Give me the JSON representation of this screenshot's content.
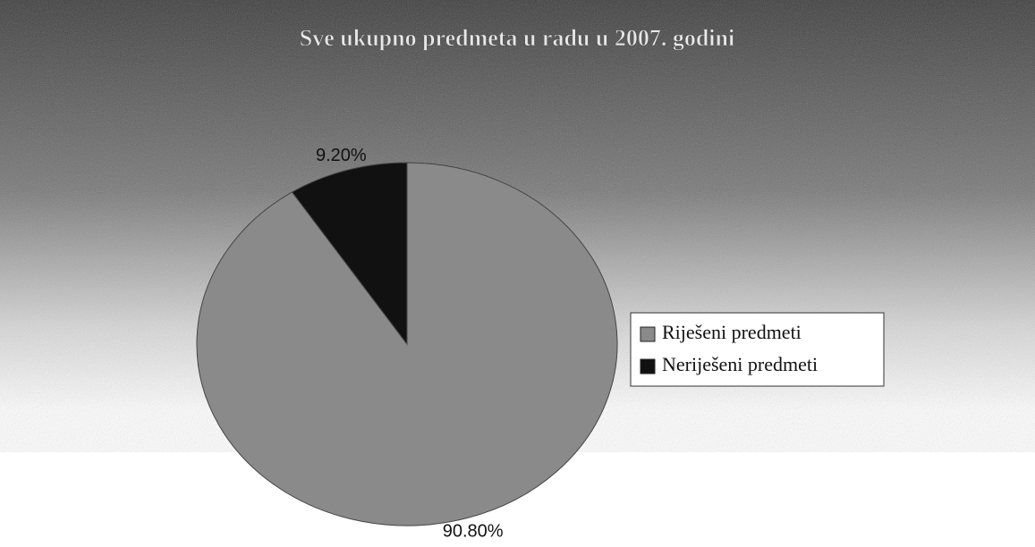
{
  "chart_data": {
    "type": "pie",
    "title": "Sve ukupno predmeta u radu u 2007. godini",
    "categories": [
      "Riješeni predmeti",
      "Neriješeni predmeti"
    ],
    "values": [
      90.8,
      9.2
    ],
    "value_labels": [
      "90.80%",
      "9.20%"
    ],
    "colors": [
      "#8a8a8a",
      "#111111"
    ],
    "legend": "right"
  }
}
